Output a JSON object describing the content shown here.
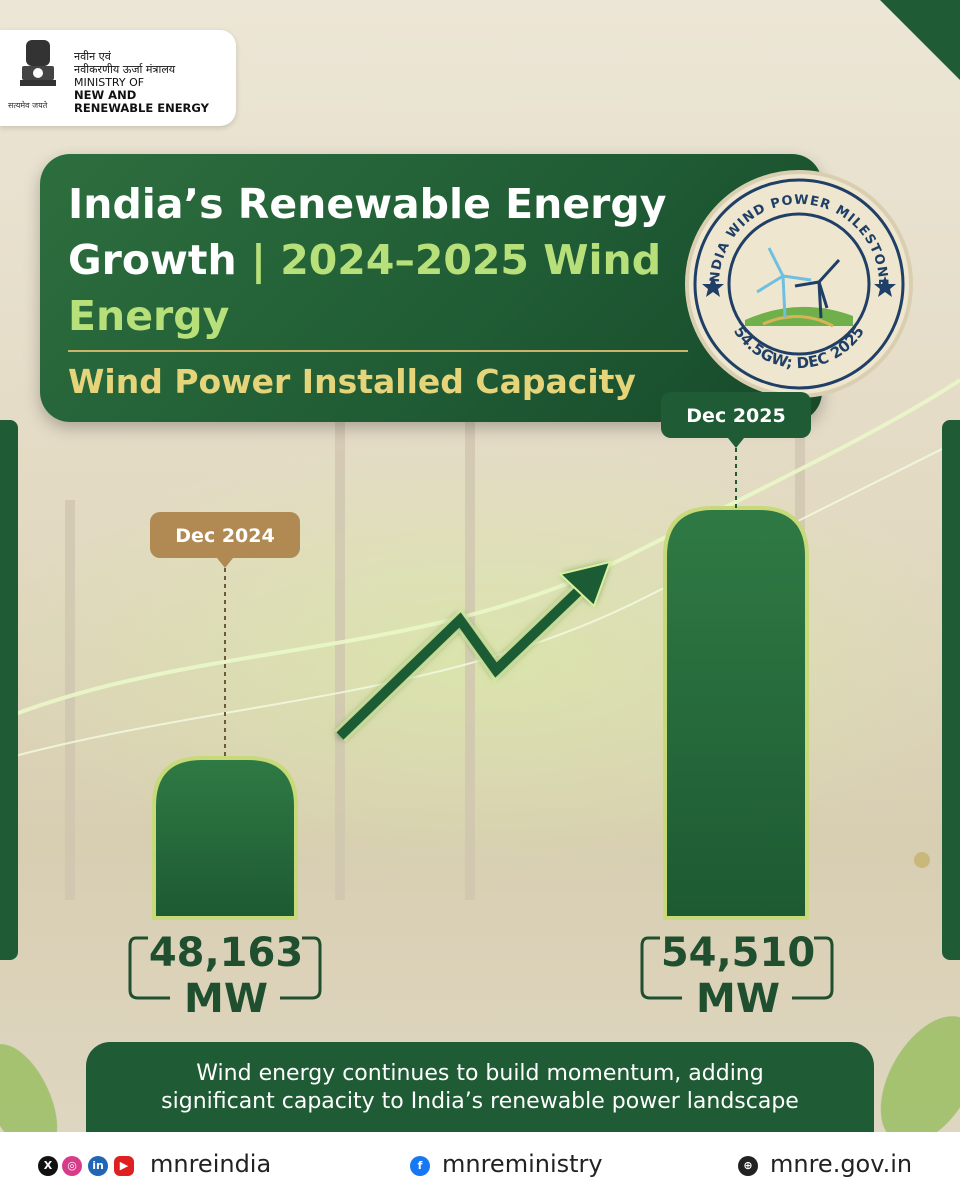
{
  "header": {
    "org_hindi_1": "नवीन एवं",
    "org_hindi_2": "नवीकरणीय ऊर्जा मंत्रालय",
    "org_line_1": "MINISTRY OF",
    "org_line_2": "NEW AND",
    "org_line_3": "RENEWABLE ENERGY",
    "motto": "सत्यमेव जयते"
  },
  "title": {
    "line1": "India’s Renewable Energy",
    "line2_a": "Growth ",
    "line2_sep": "| ",
    "line2_b": "2024–2025 Wind",
    "line3": "Energy",
    "subtitle": "Wind Power Installed Capacity"
  },
  "badge": {
    "top_text": "INDIA WIND POWER MILESTONE",
    "bottom_text": "54.5GW; DEC 2025"
  },
  "chart_data": {
    "type": "bar",
    "categories": [
      "Dec 2024",
      "Dec 2025"
    ],
    "values": [
      48163,
      54510
    ],
    "value_labels": [
      {
        "num": "48,163",
        "unit": "MW"
      },
      {
        "num": "54,510",
        "unit": "MW"
      }
    ],
    "unit": "MW",
    "colors": {
      "bar": "#246b3a",
      "bar_border": "#c8d97a",
      "tag_left": "#b08a52",
      "tag_right": "#1f5b34"
    }
  },
  "footer": {
    "line1": "Wind energy continues to build momentum, adding",
    "line2": "significant capacity to India’s renewable power landscape"
  },
  "social": {
    "handle_1": "mnreindia",
    "handle_2": "mnreministry",
    "handle_3": "mnre.gov.in",
    "icons": [
      "x-icon",
      "instagram-icon",
      "linkedin-icon",
      "youtube-icon",
      "facebook-icon",
      "web-icon"
    ]
  },
  "colors": {
    "brand_green": "#1f5b34",
    "accent_lime": "#b8e07a",
    "accent_gold": "#e6d47a"
  }
}
